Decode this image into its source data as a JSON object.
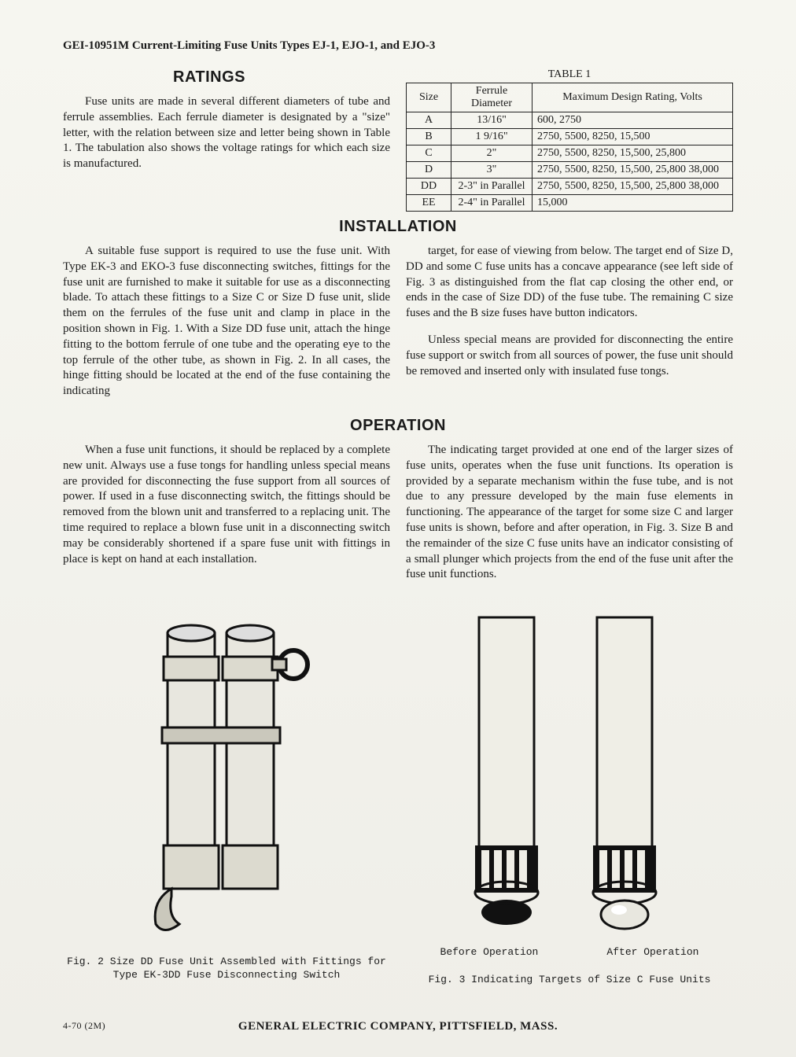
{
  "doc_id": "GEI-10951M Current-Limiting Fuse Units Types EJ-1, EJO-1, and EJO-3",
  "headings": {
    "ratings": "RATINGS",
    "installation": "INSTALLATION",
    "operation": "OPERATION"
  },
  "ratings_para": "Fuse units are made in several different diameters of tube and ferrule assemblies. Each ferrule diameter is designated by a \"size\" letter, with the relation between size and letter being shown in Table 1. The tabulation also shows the voltage ratings for which each size is manufactured.",
  "table": {
    "title": "TABLE 1",
    "columns": [
      "Size",
      "Ferrule Diameter",
      "Maximum Design Rating, Volts"
    ],
    "rows": [
      [
        "A",
        "13/16\"",
        "600, 2750"
      ],
      [
        "B",
        "1 9/16\"",
        "2750, 5500, 8250, 15,500"
      ],
      [
        "C",
        "2\"",
        "2750, 5500, 8250, 15,500, 25,800"
      ],
      [
        "D",
        "3\"",
        "2750, 5500, 8250, 15,500, 25,800 38,000"
      ],
      [
        "DD",
        "2-3\" in Parallel",
        "2750, 5500, 8250, 15,500, 25,800 38,000"
      ],
      [
        "EE",
        "2-4\" in Parallel",
        "15,000"
      ]
    ]
  },
  "installation": {
    "left": "A suitable fuse support is required to use the fuse unit. With Type EK-3 and EKO-3 fuse disconnecting switches, fittings for the fuse unit are furnished to make it suitable for use as a disconnecting blade. To attach these fittings to a Size C or Size D fuse unit, slide them on the ferrules of the fuse unit and clamp in place in the position shown in Fig. 1. With a Size DD fuse unit, attach the hinge fitting to the bottom ferrule of one tube and the operating eye to the top ferrule of the other tube, as shown in Fig. 2. In all cases, the hinge fitting should be located at the end of the fuse containing the indicating",
    "right1": "target, for ease of viewing from below. The target end of Size D, DD and some C fuse units has a concave appearance (see left side of Fig. 3 as distinguished from the flat cap closing the other end, or ends in the case of Size DD) of the fuse tube. The remaining C size fuses and the B size fuses have button indicators.",
    "right2": "Unless special means are provided for disconnecting the entire fuse support or switch from all sources of power, the fuse unit should be removed and inserted only with insulated fuse tongs."
  },
  "operation": {
    "left": "When a fuse unit functions, it should be replaced by a complete new unit. Always use a fuse tongs for handling unless special means are provided for disconnecting the fuse support from all sources of power. If used in a fuse disconnecting switch, the fittings should be removed from the blown unit and transferred to a replacing unit. The time required to replace a blown fuse unit in a disconnecting switch may be considerably shortened if a spare fuse unit with fittings in place is kept on hand at each installation.",
    "right": "The indicating target provided at one end of the larger sizes of fuse units, operates when the fuse unit functions. Its operation is provided by a separate mechanism within the fuse tube, and is not due to any pressure developed by the main fuse elements in functioning. The appearance of the target for some size C and larger fuse units is shown, before and after operation, in Fig. 3. Size B and the remainder of the size C fuse units have an indicator consisting of a small plunger which projects from the end of the fuse unit after the fuse unit functions."
  },
  "figures": {
    "fig2_caption": "Fig. 2   Size DD Fuse Unit Assembled with Fittings for Type EK-3DD Fuse Disconnecting Switch",
    "fig3_caption": "Fig. 3   Indicating Targets of Size C Fuse Units",
    "fig3_labels": {
      "before": "Before Operation",
      "after": "After Operation"
    }
  },
  "footer": {
    "code": "4-70 (2M)",
    "company": "GENERAL ELECTRIC COMPANY, PITTSFIELD, MASS."
  },
  "colors": {
    "text": "#1a1a1a",
    "border": "#222222",
    "page_bg": "#f2f2ee"
  }
}
